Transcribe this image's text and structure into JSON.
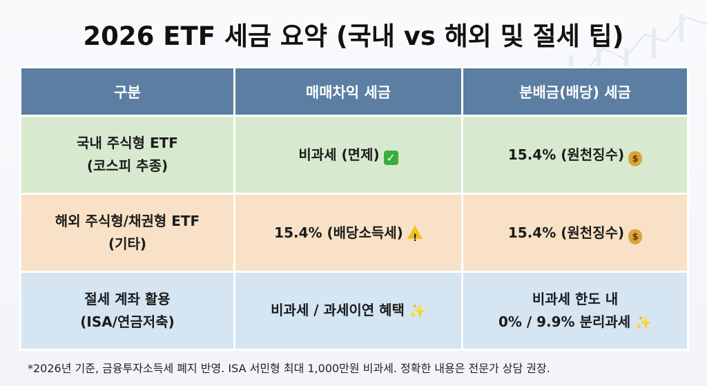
{
  "title": "2026 ETF 세금 요약 (국내 vs 해외 및 절세 팁)",
  "table": {
    "headers": [
      "구분",
      "매매차익 세금",
      "분배금(배당) 세금"
    ],
    "rows": [
      {
        "category_line1": "국내 주식형 ETF",
        "category_line2": "(코스피 추종)",
        "capital_gain": "비과세 (면제)",
        "capital_gain_icon": "check-mark-icon",
        "dividend_line1": "15.4% (원천징수)",
        "dividend_line2": "",
        "dividend_icon": "money-bag-icon"
      },
      {
        "category_line1": "해외 주식형/채권형 ETF",
        "category_line2": "(기타)",
        "capital_gain": "15.4% (배당소득세)",
        "capital_gain_icon": "warning-icon",
        "dividend_line1": "15.4% (원천징수)",
        "dividend_line2": "",
        "dividend_icon": "money-bag-icon"
      },
      {
        "category_line1": "절세 계좌 활용",
        "category_line2": "(ISA/연금저축)",
        "capital_gain": "비과세 / 과세이연 혜택",
        "capital_gain_icon": "sparkles-icon",
        "dividend_line1": "비과세 한도 내",
        "dividend_line2": "0% / 9.9% 분리과세",
        "dividend_icon": "sparkles-icon"
      }
    ]
  },
  "footnote": "*2026년 기준, 금융투자소득세 폐지 반영. ISA 서민형 최대 1,000만원 비과세. 정확한 내용은 전문가 상담 권장.",
  "colors": {
    "header_bg": "#5c7ea3",
    "domestic_row": "#d7ead0",
    "overseas_row": "#f8e1c6",
    "taxsave_row": "#d5e5f2"
  }
}
